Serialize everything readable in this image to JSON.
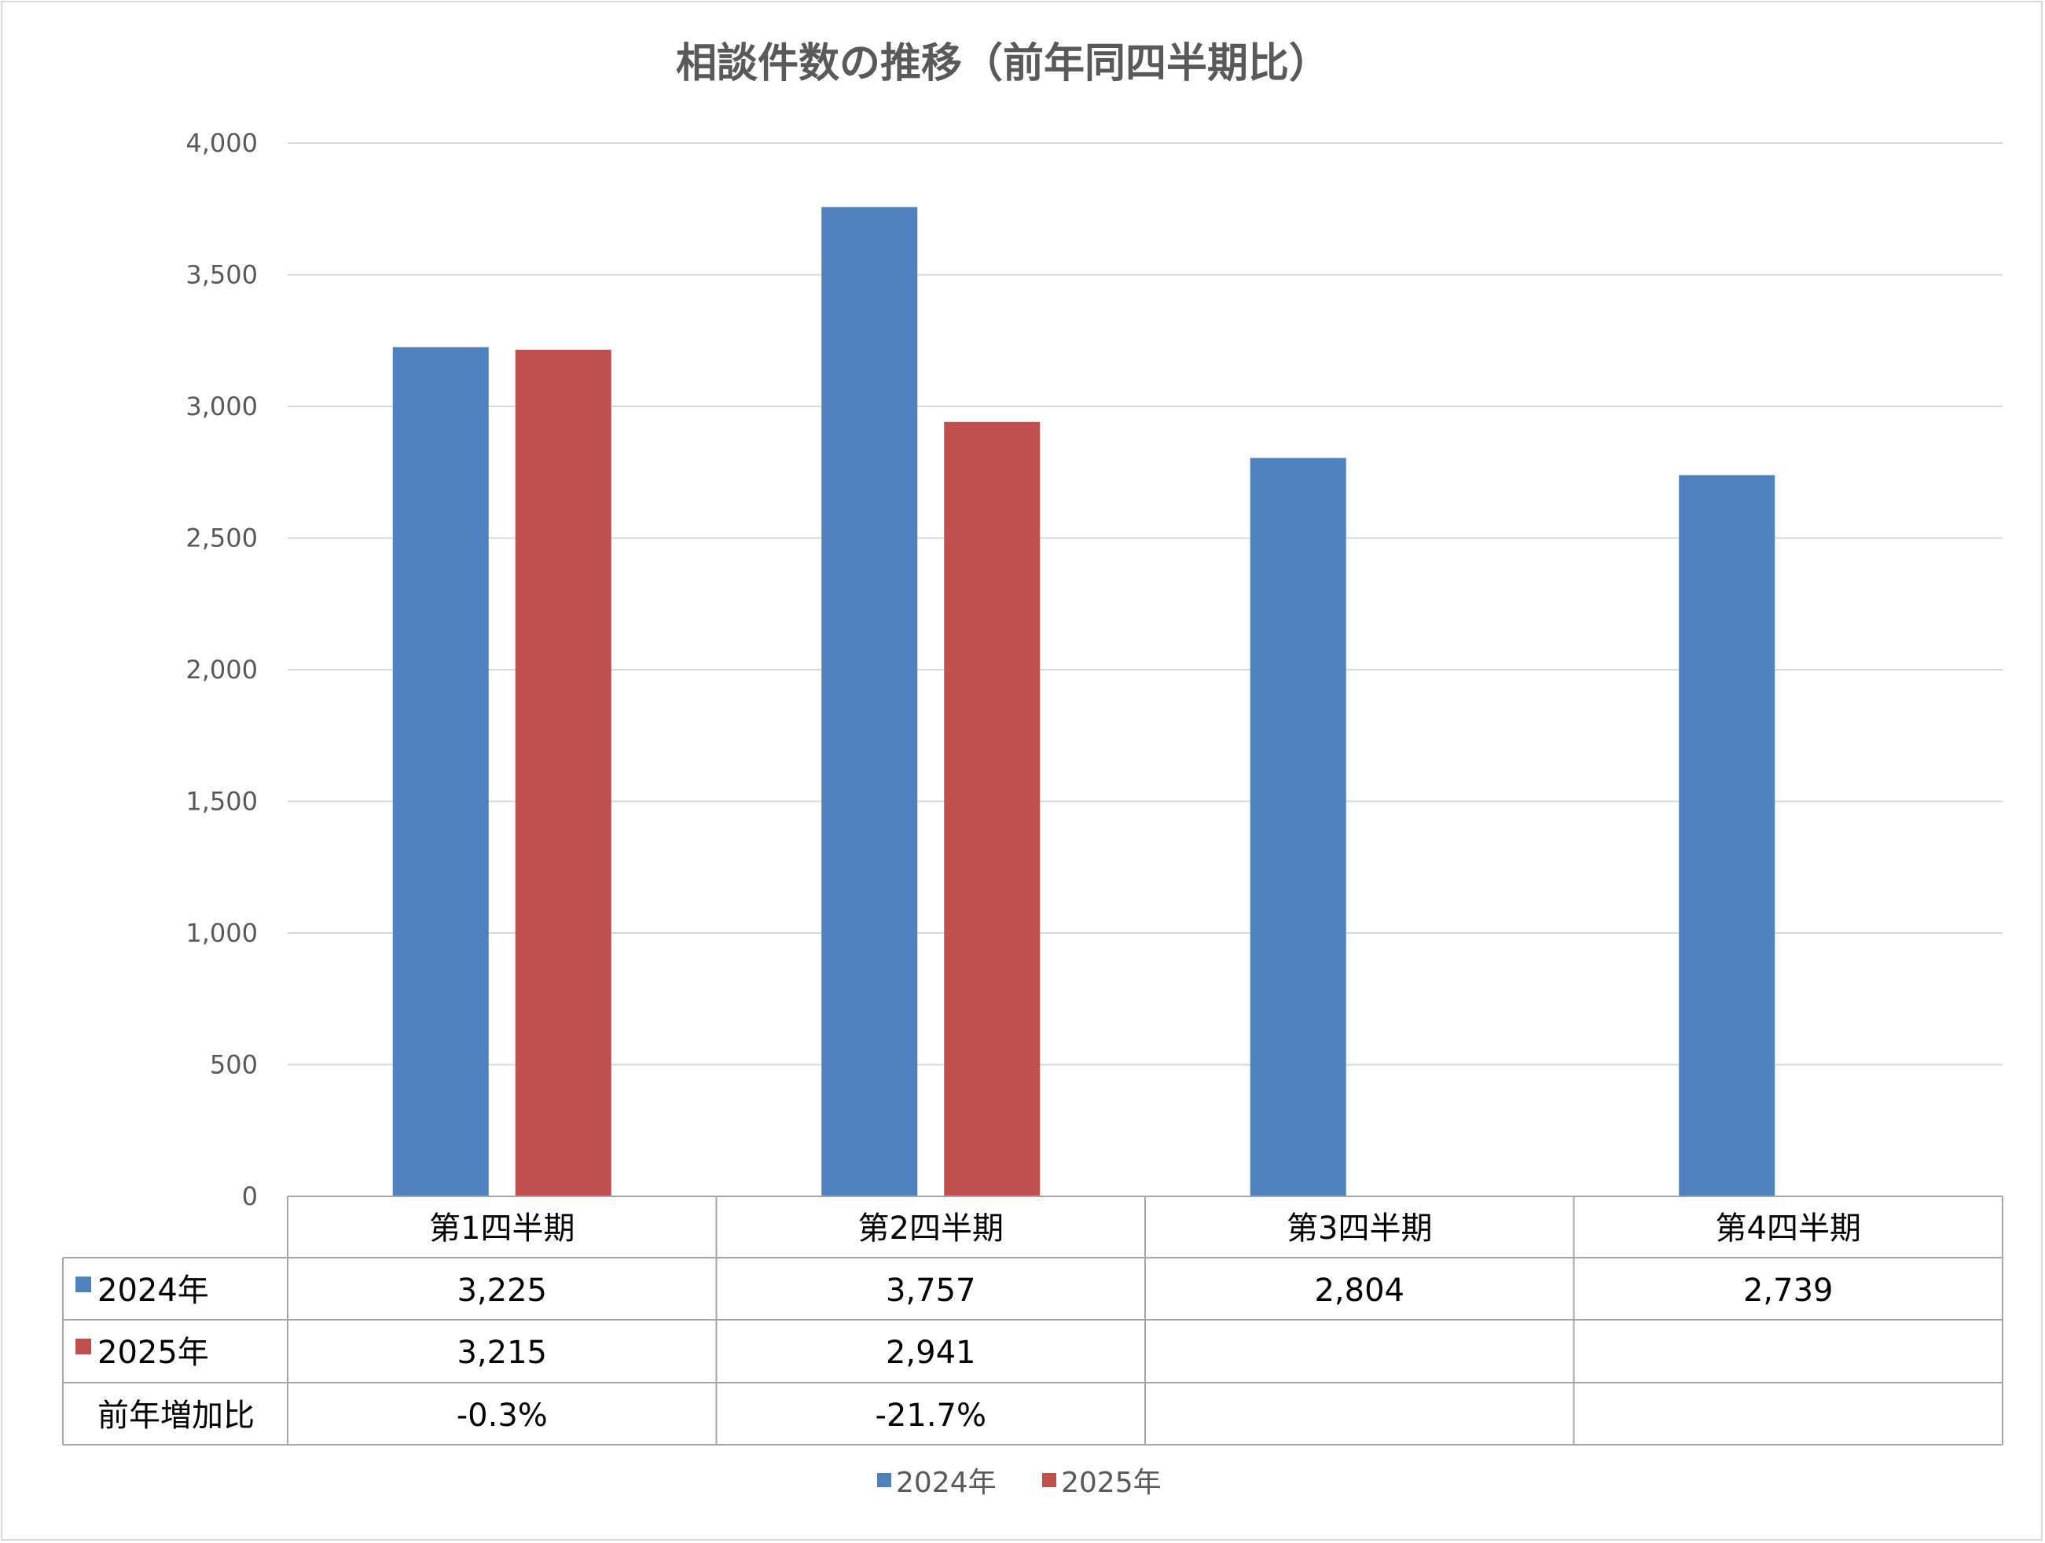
{
  "chart_data": {
    "type": "bar",
    "title": "相談件数の推移（前年同四半期比）",
    "categories": [
      "第1四半期",
      "第2四半期",
      "第3四半期",
      "第4四半期"
    ],
    "series": [
      {
        "name": "2024年",
        "color": "#4f81bd",
        "values": [
          3225,
          3757,
          2804,
          2739
        ],
        "labels": [
          "3,225",
          "3,757",
          "2,804",
          "2,739"
        ]
      },
      {
        "name": "2025年",
        "color": "#c0504d",
        "values": [
          3215,
          2941,
          null,
          null
        ],
        "labels": [
          "3,215",
          "2,941",
          "",
          ""
        ]
      }
    ],
    "extra_row": {
      "name": "前年増加比",
      "values": [
        "-0.3%",
        "-21.7%",
        "",
        ""
      ]
    },
    "ylim": [
      0,
      4000
    ],
    "yticks": [
      "0",
      "500",
      "1,000",
      "1,500",
      "2,000",
      "2,500",
      "3,000",
      "3,500",
      "4,000"
    ],
    "grid": true,
    "legend_position": "bottom",
    "data_table": true
  }
}
